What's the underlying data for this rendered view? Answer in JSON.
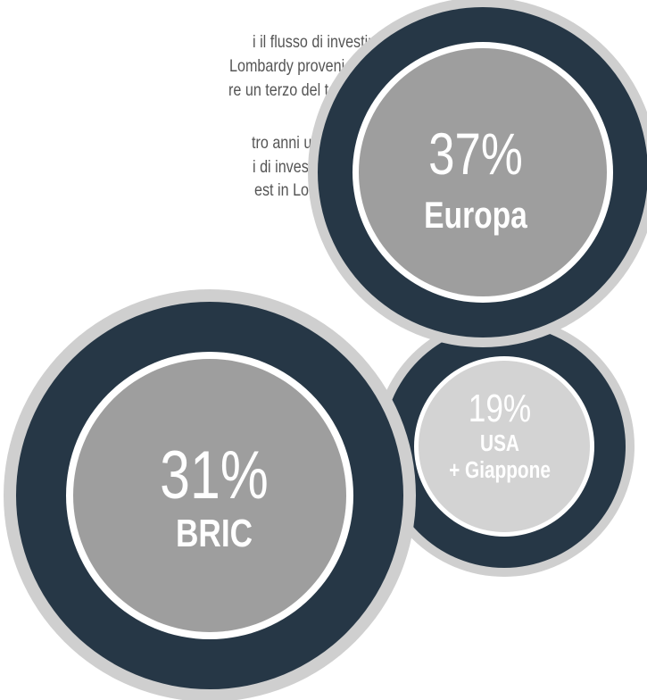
{
  "text": {
    "paragraphs": [
      [
        "i il flusso di investimenti",
        "Lombardy proveniente dai paesi",
        "re un terzo del totale."
      ],
      [
        "tro anni un numero",
        "i di investimento finalizzati",
        "est in Lombardy proviene dai"
      ]
    ]
  },
  "bubbles": [
    {
      "value": "37%",
      "label": [
        "Europa"
      ]
    },
    {
      "value": "31%",
      "label": [
        "BRIC"
      ]
    },
    {
      "value": "19%",
      "label": [
        "USA",
        "+ Giappone"
      ]
    }
  ]
}
